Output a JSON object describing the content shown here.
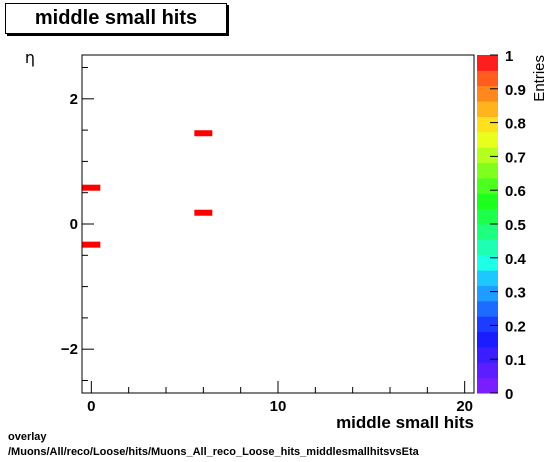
{
  "header": {
    "title": "middle small hits"
  },
  "footer": {
    "line1": "overlay",
    "line2": "/Muons/All/reco/Loose/hits/Muons_All_reco_Loose_hits_middlesmallhitsvsEta"
  },
  "colors": {
    "palette": [
      "#7a1eff",
      "#5a1eff",
      "#3a1eff",
      "#1a1eff",
      "#1e3cff",
      "#1e6cff",
      "#1e9cff",
      "#1ec8ff",
      "#1effe8",
      "#1effb4",
      "#1eff80",
      "#1eff4c",
      "#1eff1e",
      "#4cff1e",
      "#80ff1e",
      "#b4ff1e",
      "#e8ff1e",
      "#ffe01e",
      "#ffb41e",
      "#ff881e",
      "#ff5c1e",
      "#ff1e1e"
    ],
    "markers": "#ff0000"
  },
  "chart_data": {
    "type": "heatmap",
    "title": "middle small hits",
    "xlabel": "middle small hits",
    "ylabel": "η",
    "xlim": [
      -0.5,
      20.5
    ],
    "ylim": [
      -2.7,
      2.7
    ],
    "x_ticks": [
      0,
      10,
      20
    ],
    "y_ticks": [
      -2,
      0,
      2
    ],
    "y_tick_labels": [
      "−2",
      "0",
      "2"
    ],
    "cells": [
      {
        "x": 6,
        "y": 1.45,
        "value": 1
      },
      {
        "x": 0,
        "y": 0.58,
        "value": 1
      },
      {
        "x": 6,
        "y": 0.18,
        "value": 1
      },
      {
        "x": 0,
        "y": -0.33,
        "value": 1
      }
    ],
    "colorbar": {
      "label": "Entries",
      "range": [
        0,
        1
      ],
      "ticks": [
        0,
        0.1,
        0.2,
        0.3,
        0.4,
        0.5,
        0.6,
        0.7,
        0.8,
        0.9,
        1
      ],
      "tick_labels": [
        "0",
        "0.1",
        "0.2",
        "0.3",
        "0.4",
        "0.5",
        "0.6",
        "0.7",
        "0.8",
        "0.9",
        "1"
      ]
    }
  }
}
